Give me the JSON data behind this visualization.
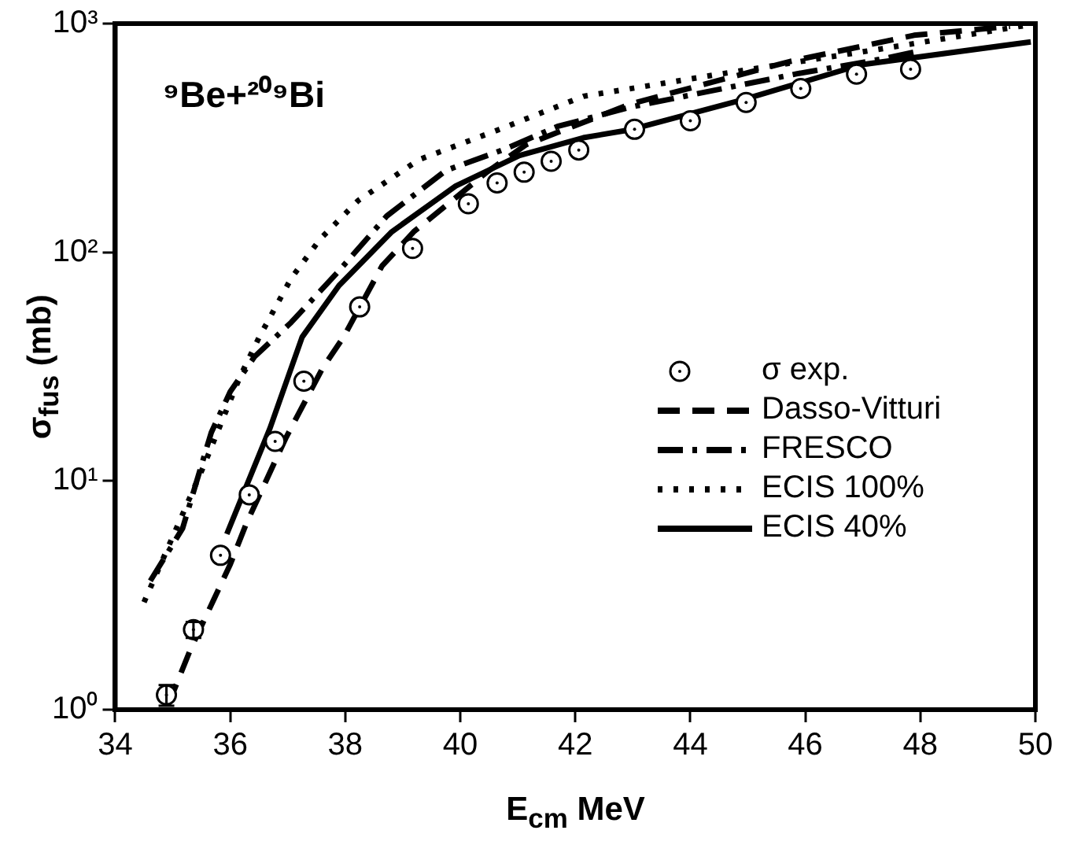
{
  "chart_data": {
    "type": "line",
    "xlabel": "E$_{cm}$ MeV",
    "ylabel": "σ$_{fus}$ (mb)",
    "annotations": [
      "⁹Be+²⁰⁹Bi"
    ],
    "xlim": [
      34,
      50
    ],
    "xticks": [
      34,
      36,
      38,
      40,
      42,
      44,
      46,
      48,
      50
    ],
    "ylim": [
      1,
      1000
    ],
    "yticks": [
      {
        "value": 1,
        "label": "10⁰"
      },
      {
        "value": 10,
        "label": "10¹"
      },
      {
        "value": 100,
        "label": "10²"
      },
      {
        "value": 1000,
        "label": "10³"
      }
    ],
    "log": "y",
    "grid": false,
    "legend": "right",
    "series": [
      {
        "name": "σ exp.",
        "type": "scatter",
        "marker": "circle",
        "color": "#000000",
        "x": [
          34.89,
          35.36,
          35.83,
          36.33,
          36.78,
          37.28,
          38.25,
          39.17,
          40.14,
          40.64,
          41.11,
          41.58,
          42.06,
          43.03,
          44.0,
          44.97,
          45.92,
          46.89,
          47.83
        ],
        "values": [
          1.16,
          2.24,
          4.73,
          8.7,
          14.9,
          27.3,
          57.7,
          104,
          163,
          201,
          224,
          250,
          280,
          345,
          376,
          452,
          520,
          601,
          632
        ],
        "errors": [
          0.12,
          0.18,
          null,
          null,
          null,
          null,
          null,
          null,
          null,
          null,
          null,
          null,
          null,
          null,
          null,
          null,
          null,
          null,
          null
        ]
      },
      {
        "name": "Dasso-Vitturi",
        "type": "line",
        "line_style": "dashed",
        "color": "#000000",
        "x": [
          34.92,
          35.31,
          36.0,
          36.28,
          36.97,
          37.61,
          37.97,
          38.64,
          39.19,
          39.75,
          40.47,
          41.14,
          42.97,
          45.75,
          47.89,
          49.56
        ],
        "values": [
          1.05,
          1.84,
          4.32,
          6.52,
          15.5,
          31.3,
          42.6,
          87.2,
          123,
          160,
          225,
          295,
          446,
          685,
          889,
          973
        ]
      },
      {
        "name": "FRESCO",
        "type": "line",
        "line_style": "dashdot",
        "color": "#000000",
        "x": [
          34.61,
          35.17,
          35.67,
          36.0,
          36.42,
          37.06,
          37.89,
          38.72,
          39.75,
          40.75,
          41.69,
          42.97,
          45.86,
          47.33,
          48.0
        ],
        "values": [
          3.66,
          6.2,
          16.3,
          24.6,
          34.9,
          49.4,
          83,
          144,
          228,
          281,
          355,
          432,
          604,
          700,
          760
        ]
      },
      {
        "name": "ECIS 100%",
        "type": "line",
        "line_style": "dotted",
        "color": "#000000",
        "x": [
          34.5,
          35.53,
          36.17,
          36.5,
          37.06,
          37.56,
          38.22,
          39.28,
          40.67,
          42.14,
          44.56,
          47.33,
          49.92
        ],
        "values": [
          2.95,
          11.5,
          28.6,
          42.4,
          77,
          114,
          168,
          254,
          344,
          481,
          604,
          776,
          990
        ]
      },
      {
        "name": "ECIS 40%",
        "type": "line",
        "line_style": "solid",
        "color": "#000000",
        "x": [
          35.94,
          36.69,
          37.25,
          37.89,
          38.81,
          39.92,
          41.03,
          42.14,
          42.97,
          44.92,
          46.97,
          49.92
        ],
        "values": [
          5.86,
          17.0,
          42.6,
          71.5,
          123,
          195,
          265,
          317,
          344,
          465,
          661,
          832
        ]
      }
    ]
  }
}
